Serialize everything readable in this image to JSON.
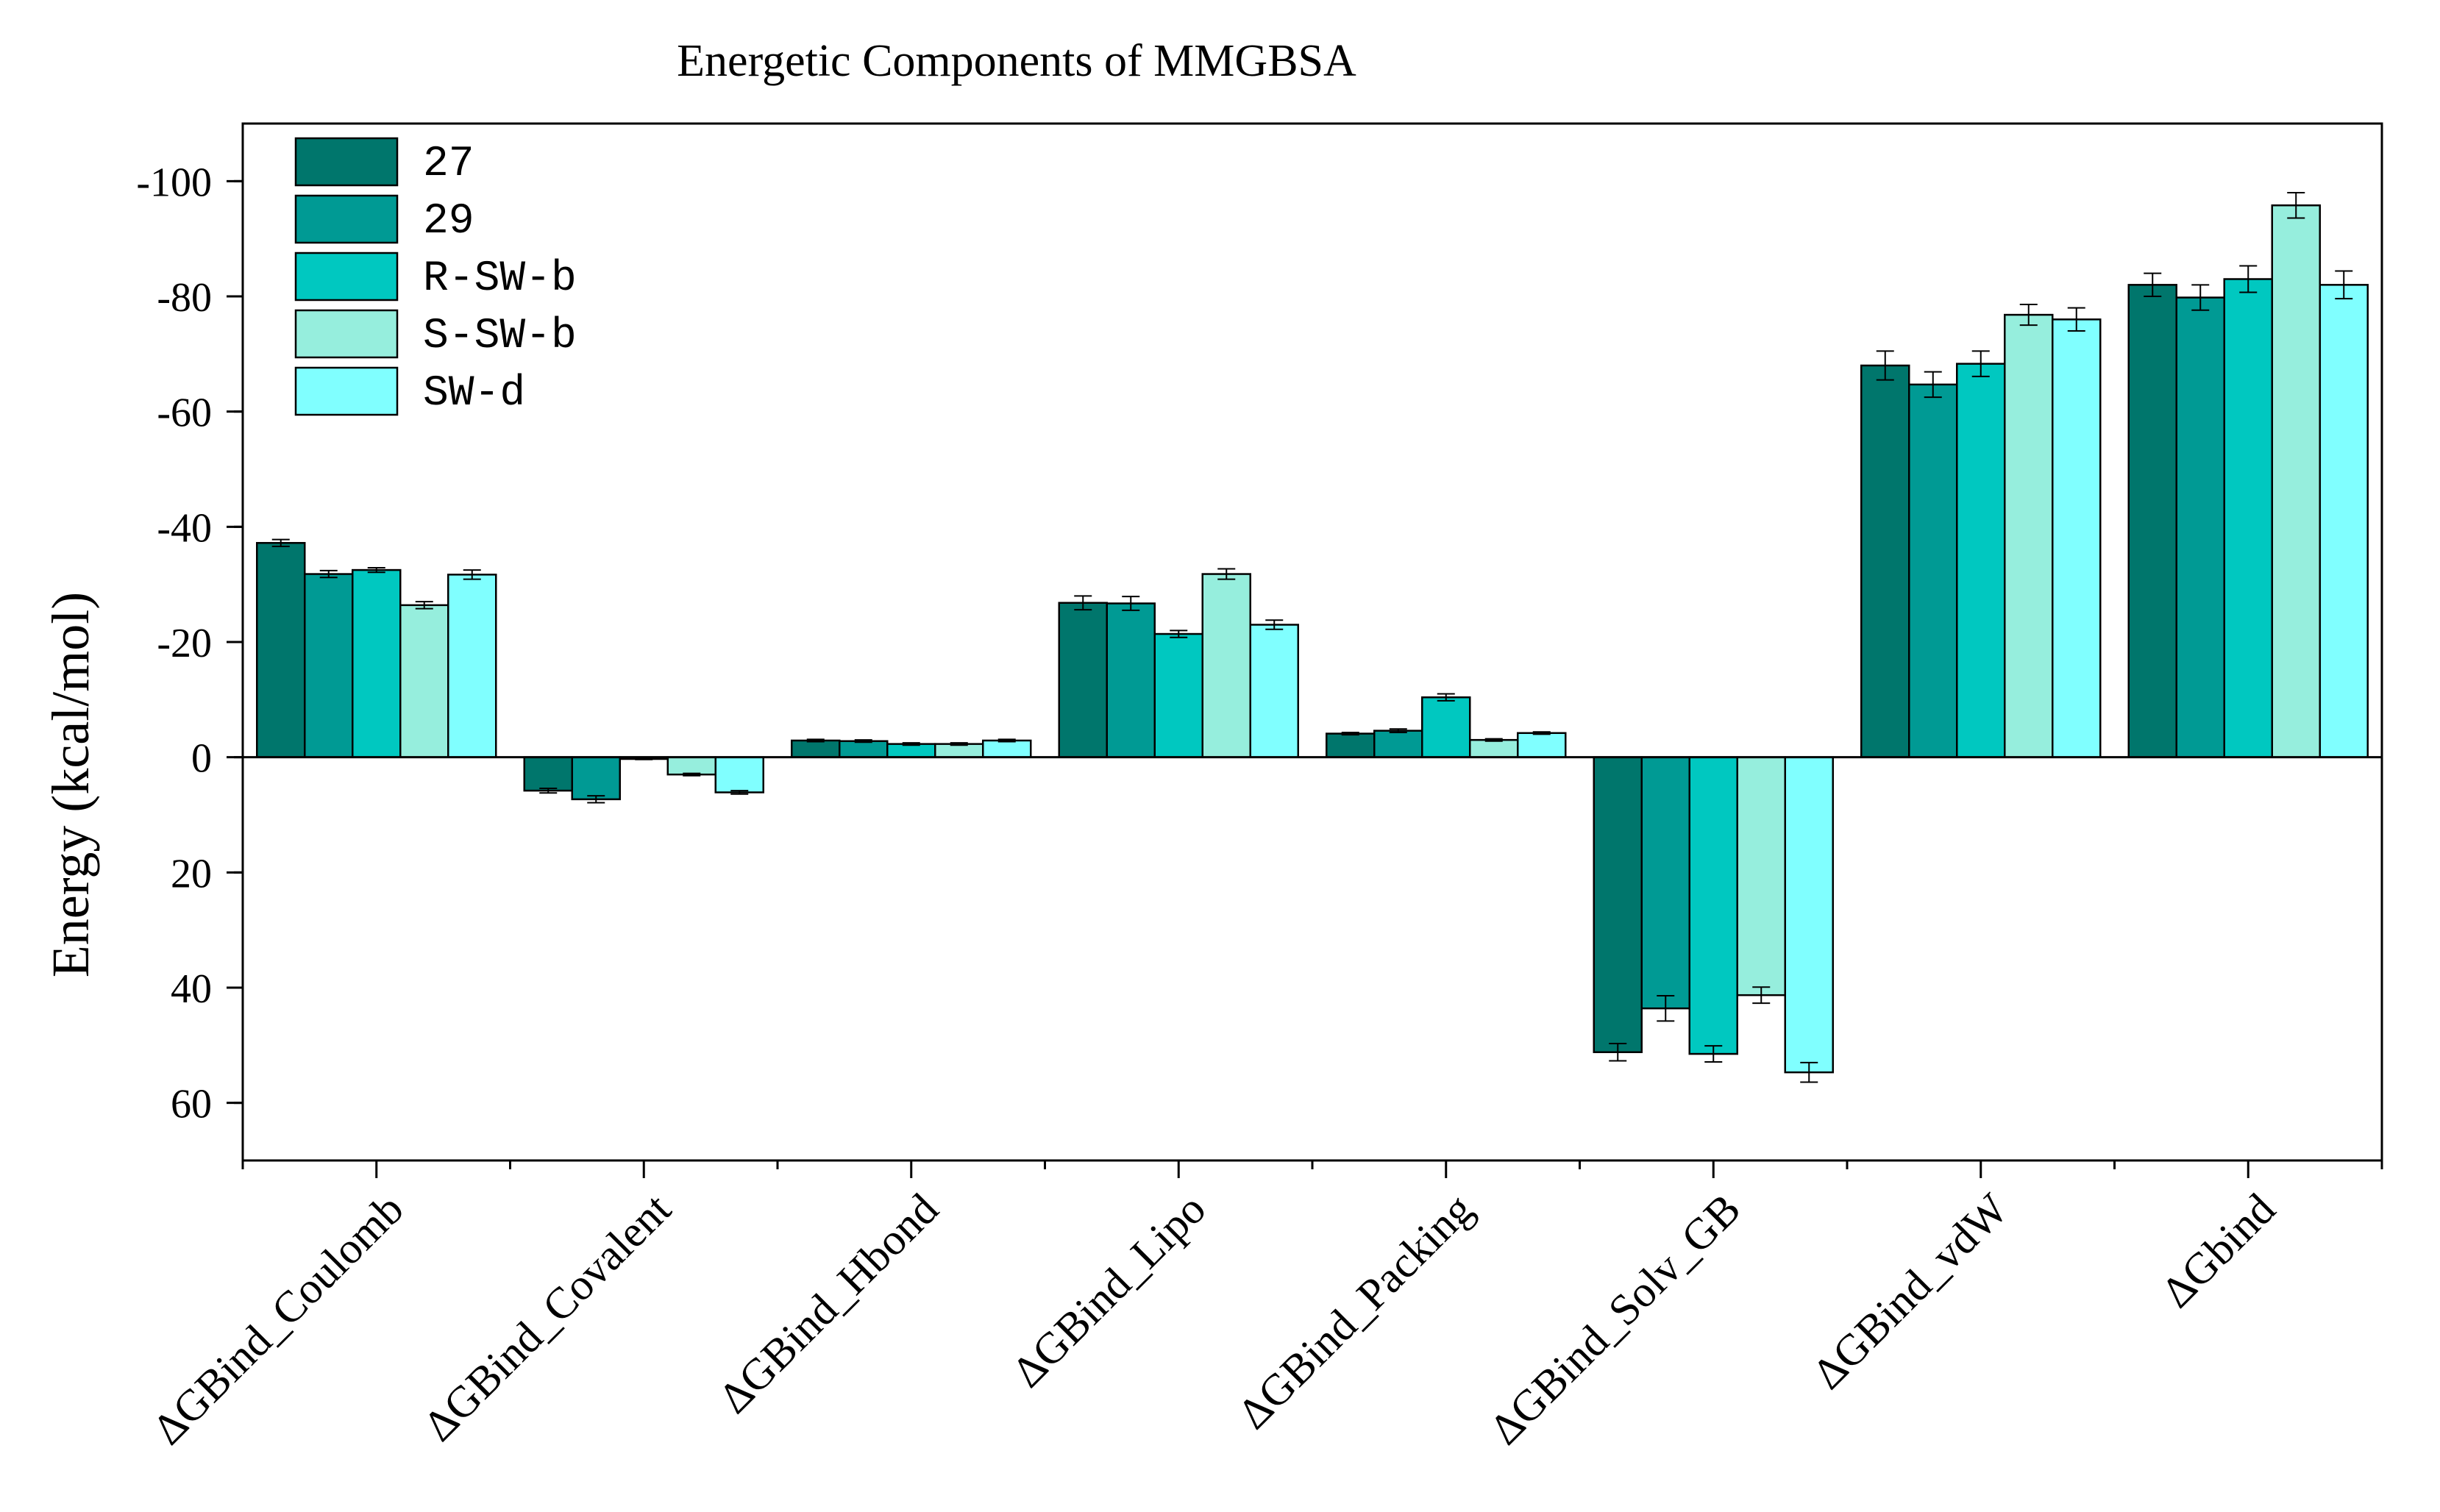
{
  "chart_data": {
    "type": "bar",
    "title": "Energetic Components of MMGBSA",
    "xlabel": "",
    "ylabel": "Energy (kcal/mol)",
    "ylim": [
      70,
      -110
    ],
    "y_axis_inverted": true,
    "y_ticks": [
      -100,
      -80,
      -60,
      -40,
      -20,
      0,
      20,
      40,
      60
    ],
    "y_tick_labels": [
      "-100",
      "-80",
      "-60",
      "-40",
      "-20",
      "0",
      "20",
      "40",
      "60"
    ],
    "categories": [
      "ΔGBind_Coulomb",
      "ΔGBind_Covalent",
      "ΔGBind_Hbond",
      "ΔGBind_Lipo",
      "ΔGBind_Packing",
      "ΔGBind_Solv_GB",
      "ΔGBind_vdW",
      "ΔGbind"
    ],
    "grid": false,
    "legend_position": "top-left",
    "series": [
      {
        "name": "27",
        "color": "#00766C",
        "values": [
          -37.2,
          5.8,
          -2.9,
          -26.8,
          -4.1,
          51.2,
          -68.0,
          -82.0
        ],
        "errors": [
          0.6,
          0.4,
          0.2,
          1.2,
          0.2,
          1.5,
          2.5,
          2.0
        ]
      },
      {
        "name": "29",
        "color": "#009A94",
        "values": [
          -31.8,
          7.3,
          -2.8,
          -26.7,
          -4.6,
          43.6,
          -64.7,
          -79.8
        ],
        "errors": [
          0.6,
          0.6,
          0.2,
          1.2,
          0.3,
          2.2,
          2.2,
          2.2
        ]
      },
      {
        "name": "R-SW-b",
        "color": "#00C8C0",
        "values": [
          -32.5,
          0.3,
          -2.3,
          -21.4,
          -10.4,
          51.5,
          -68.3,
          -83.0
        ],
        "errors": [
          0.4,
          0.1,
          0.2,
          0.6,
          0.6,
          1.4,
          2.2,
          2.3
        ]
      },
      {
        "name": "S-SW-b",
        "color": "#96EEDD",
        "values": [
          -26.4,
          3.0,
          -2.3,
          -31.8,
          -3.0,
          41.3,
          -76.8,
          -95.8
        ],
        "errors": [
          0.6,
          0.2,
          0.2,
          0.9,
          0.2,
          1.4,
          1.8,
          2.2
        ]
      },
      {
        "name": "SW-d",
        "color": "#80FFFF",
        "values": [
          -31.7,
          6.1,
          -2.9,
          -23.0,
          -4.2,
          54.7,
          -76.0,
          -82.0
        ],
        "errors": [
          0.8,
          0.3,
          0.2,
          0.8,
          0.2,
          1.7,
          2.0,
          2.4
        ]
      }
    ]
  }
}
